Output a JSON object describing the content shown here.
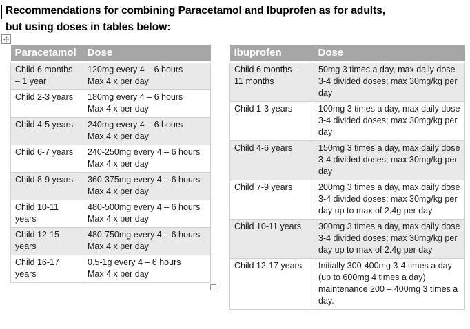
{
  "title": {
    "line1": "Recommendations for combining Paracetamol and Ibuprofen as for adults,",
    "line2": "but using doses in tables below:"
  },
  "colors": {
    "header_bg": "#a6a6a6",
    "header_text": "#ffffff",
    "band_bg": "#e9e9e9",
    "border": "#cfcfcf",
    "text": "#1c1c1c"
  },
  "icons": {
    "table_move_handle": "four-way-move-arrow",
    "table_resize_handle": "square-outline"
  },
  "tables": [
    {
      "id": "paracetamol",
      "columns": [
        "Paracetamol",
        "Dose"
      ],
      "rows": [
        {
          "age": "Child 6 months – 1 year",
          "dose_lines": [
            "120mg every 4 – 6 hours",
            "Max 4 x per day"
          ]
        },
        {
          "age": "Child 2-3 years",
          "dose_lines": [
            "180mg every 4 – 6 hours",
            "Max 4 x per day"
          ]
        },
        {
          "age": "Child 4-5 years",
          "dose_lines": [
            "240mg every 4 – 6 hours",
            "Max 4 x per day"
          ]
        },
        {
          "age": "Child 6-7 years",
          "dose_lines": [
            "240-250mg every 4 – 6 hours",
            "Max 4 x per day"
          ]
        },
        {
          "age": "Child 8-9 years",
          "dose_lines": [
            "360-375mg every 4 – 6 hours",
            "Max 4 x per day"
          ]
        },
        {
          "age": "Child 10-11 years",
          "dose_lines": [
            "480-500mg every 4 – 6 hours",
            "Max 4 x per day"
          ]
        },
        {
          "age": "Child 12-15 years",
          "dose_lines": [
            "480-750mg every 4 – 6 hours",
            "Max 4 x per day"
          ]
        },
        {
          "age": "Child 16-17 years",
          "dose_lines": [
            "0.5-1g every 4 – 6 hours",
            "Max 4 x per day"
          ]
        }
      ]
    },
    {
      "id": "ibuprofen",
      "columns": [
        "Ibuprofen",
        "Dose"
      ],
      "rows": [
        {
          "age": "Child 6 months – 11 months",
          "dose_lines": [
            "50mg 3 times a day, max daily dose 3-4 divided doses; max 30mg/kg per day"
          ]
        },
        {
          "age": "Child 1-3 years",
          "dose_lines": [
            "100mg 3 times a day, max daily dose 3-4 divided doses; max 30mg/kg per day"
          ]
        },
        {
          "age": "Child 4-6 years",
          "dose_lines": [
            "150mg 3 times a day, max daily dose 3-4 divided doses; max 30mg/kg per day"
          ]
        },
        {
          "age": "Child 7-9 years",
          "dose_lines": [
            "200mg 3 times a day, max daily dose 3-4 divided doses; max 30mg/kg per day up to max of 2.4g per day"
          ]
        },
        {
          "age": "Child 10-11 years",
          "dose_lines": [
            "300mg 3 times a day, max daily dose 3-4 divided doses; max 30mg/kg per day  up to max of 2.4g per day"
          ]
        },
        {
          "age": "Child 12-17 years",
          "dose_lines": [
            "Initially 300-400mg 3-4 times a day (up to 600mg 4 times a day) maintenance 200 – 400mg 3 times a day."
          ]
        }
      ]
    }
  ]
}
